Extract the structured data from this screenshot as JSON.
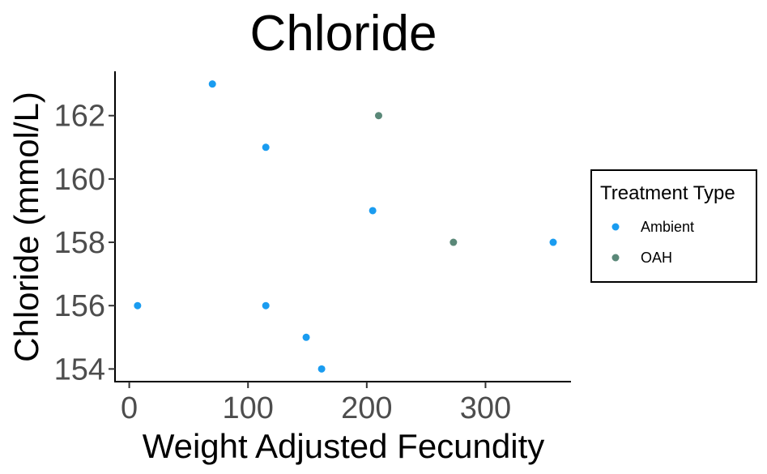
{
  "chart_data": {
    "type": "scatter",
    "title": "Chloride",
    "xlabel": "Weight Adjusted Fecundity",
    "ylabel": "Chloride (mmol/L)",
    "xlim": [
      -12,
      372
    ],
    "ylim": [
      153.6,
      163.4
    ],
    "x_ticks": [
      0,
      100,
      200,
      300
    ],
    "y_ticks": [
      154,
      156,
      158,
      160,
      162
    ],
    "grid": false,
    "legend": {
      "title": "Treatment Type",
      "position": "right"
    },
    "series": [
      {
        "name": "Ambient",
        "color": "#1a9cf0",
        "points": [
          {
            "x": 7,
            "y": 156
          },
          {
            "x": 70,
            "y": 163
          },
          {
            "x": 115,
            "y": 161
          },
          {
            "x": 115,
            "y": 156
          },
          {
            "x": 149,
            "y": 155
          },
          {
            "x": 162,
            "y": 154
          },
          {
            "x": 205,
            "y": 159
          },
          {
            "x": 357,
            "y": 158
          }
        ]
      },
      {
        "name": "OAH",
        "color": "#5a8878",
        "points": [
          {
            "x": 210,
            "y": 162
          },
          {
            "x": 273,
            "y": 158
          }
        ]
      }
    ]
  }
}
